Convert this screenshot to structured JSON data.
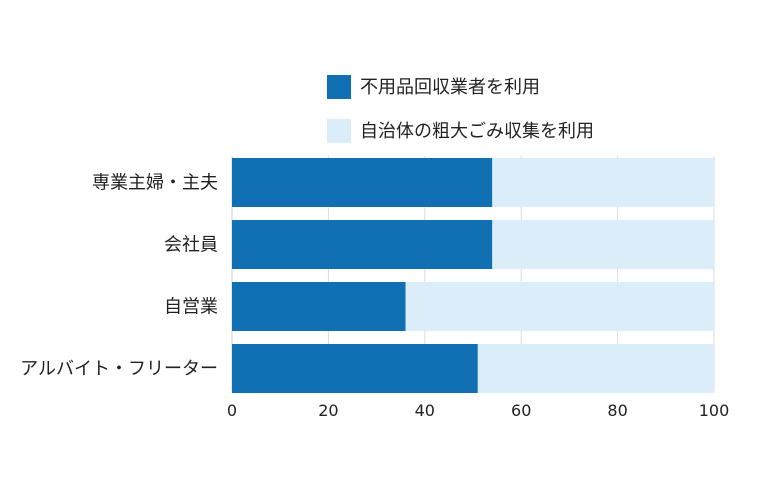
{
  "chart_data": {
    "type": "bar",
    "orientation": "horizontal",
    "stacked": true,
    "categories": [
      "専業主婦・主夫",
      "会社員",
      "自営業",
      "アルバイト・フリーター"
    ],
    "series": [
      {
        "name": "不用品回収業者を利用",
        "color": "#1170b4",
        "values": [
          54,
          54,
          36,
          51
        ]
      },
      {
        "name": "自治体の粗大ごみ収集を利用",
        "color": "#daedf9",
        "values": [
          46,
          46,
          64,
          49
        ]
      }
    ],
    "xlim": [
      0,
      100
    ],
    "xticks": [
      0,
      20,
      40,
      60,
      80,
      100
    ],
    "title": "",
    "xlabel": "",
    "ylabel": "",
    "grid": true,
    "legend_position": "top"
  }
}
